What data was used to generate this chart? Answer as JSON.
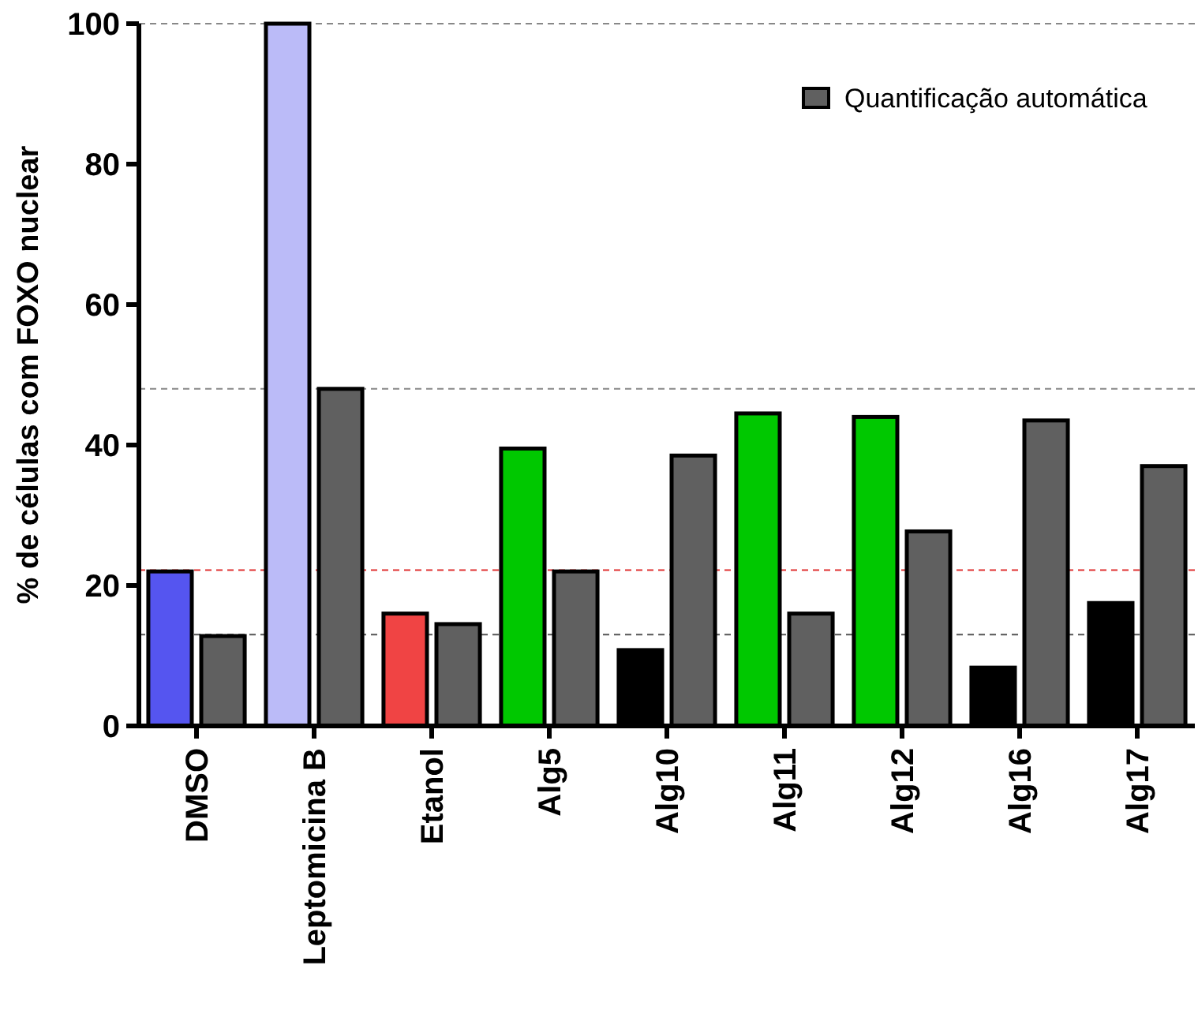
{
  "chart_data": {
    "type": "bar",
    "ylabel": "% de células com FOXO nuclear",
    "categories": [
      "DMSO",
      "Leptomicina B",
      "Etanol",
      "Alg5",
      "Alg10",
      "Alg11",
      "Alg12",
      "Alg16",
      "Alg17"
    ],
    "series": [
      {
        "colors": [
          "#5555f0",
          "#bbbbf8",
          "#f04444",
          "#00c800",
          "#000000",
          "#00c800",
          "#00c800",
          "#000000",
          "#000000"
        ],
        "values": [
          22,
          100,
          16,
          39.5,
          10.8,
          44.5,
          44,
          8.3,
          17.5
        ]
      },
      {
        "name": "Quantificação automática",
        "color": "#606060",
        "values": [
          12.8,
          48,
          14.5,
          22,
          38.5,
          16,
          27.7,
          43.5,
          37
        ]
      }
    ],
    "ylim": [
      0,
      100
    ],
    "yticks": [
      0,
      20,
      40,
      60,
      80,
      100
    ],
    "grid": false,
    "legend": "top right",
    "ref_lines": [
      {
        "axis": "y",
        "value": 100,
        "color": "#888888",
        "line_style": "dashed"
      },
      {
        "axis": "y",
        "value": 48,
        "color": "#888888",
        "line_style": "dashed"
      },
      {
        "axis": "y",
        "value": 22.2,
        "color": "#e03030",
        "line_style": "dashed"
      },
      {
        "axis": "y",
        "value": 13,
        "color": "#555555",
        "line_style": "dashed"
      }
    ]
  }
}
